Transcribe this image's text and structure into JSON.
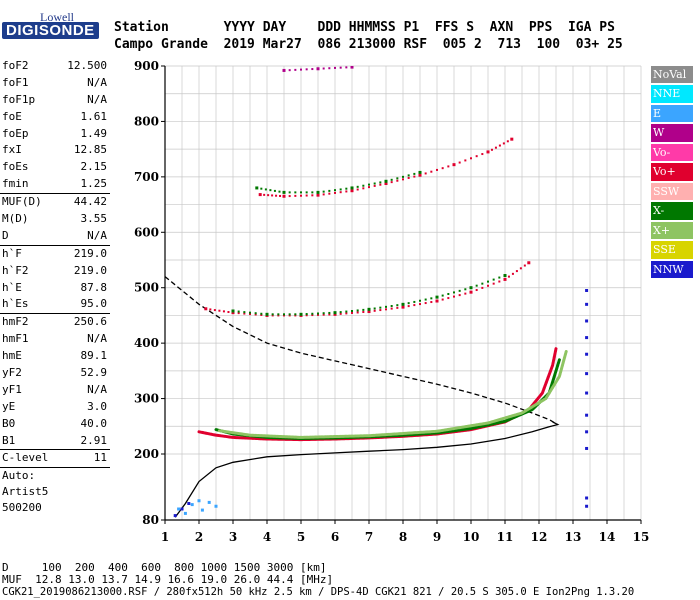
{
  "logo": {
    "top": "Lowell",
    "main": "DIGISONDE"
  },
  "header": {
    "labels": "Station       YYYY DAY    DDD HHMMSS P1  FFS S  AXN  PPS  IGA PS",
    "values": "Campo Grande  2019 Mar27  086 213000 RSF  005 2  713  100  03+ 25"
  },
  "params": [
    {
      "type": "row",
      "name": "foF2",
      "value": "12.500"
    },
    {
      "type": "row",
      "name": "foF1",
      "value": "N/A"
    },
    {
      "type": "row",
      "name": "foF1p",
      "value": "N/A"
    },
    {
      "type": "row",
      "name": "foE",
      "value": "1.61"
    },
    {
      "type": "row",
      "name": "foEp",
      "value": "1.49"
    },
    {
      "type": "row",
      "name": "fxI",
      "value": "12.85"
    },
    {
      "type": "row",
      "name": "foEs",
      "value": "2.15"
    },
    {
      "type": "row",
      "name": "fmin",
      "value": "1.25"
    },
    {
      "type": "sep"
    },
    {
      "type": "row",
      "name": "MUF(D)",
      "value": "44.42"
    },
    {
      "type": "row",
      "name": "M(D)",
      "value": "3.55"
    },
    {
      "type": "row",
      "name": "D",
      "value": "N/A"
    },
    {
      "type": "sep"
    },
    {
      "type": "row",
      "name": "h`F",
      "value": "219.0"
    },
    {
      "type": "row",
      "name": "h`F2",
      "value": "219.0"
    },
    {
      "type": "row",
      "name": "h`E",
      "value": "87.8"
    },
    {
      "type": "row",
      "name": "h`Es",
      "value": "95.0"
    },
    {
      "type": "sep"
    },
    {
      "type": "row",
      "name": "hmF2",
      "value": "250.6"
    },
    {
      "type": "row",
      "name": "hmF1",
      "value": "N/A"
    },
    {
      "type": "row",
      "name": "hmE",
      "value": "89.1"
    },
    {
      "type": "row",
      "name": "yF2",
      "value": "52.9"
    },
    {
      "type": "row",
      "name": "yF1",
      "value": "N/A"
    },
    {
      "type": "row",
      "name": "yE",
      "value": "3.0"
    },
    {
      "type": "row",
      "name": "B0",
      "value": "40.0"
    },
    {
      "type": "row",
      "name": "B1",
      "value": "2.91"
    },
    {
      "type": "sep"
    },
    {
      "type": "row",
      "name": "C-level",
      "value": "11"
    },
    {
      "type": "sep"
    },
    {
      "type": "text",
      "text": "Auto:"
    },
    {
      "type": "text",
      "text": "Artist5"
    },
    {
      "type": "text",
      "text": "500200"
    }
  ],
  "legend": [
    {
      "label": "NoVal",
      "color": "#8c8c8c"
    },
    {
      "label": "NNE",
      "color": "#00e8ff"
    },
    {
      "label": "E",
      "color": "#3ba5ff"
    },
    {
      "label": "W",
      "color": "#b0008a"
    },
    {
      "label": "Vo-",
      "color": "#ff3aa8"
    },
    {
      "label": "Vo+",
      "color": "#e0002e"
    },
    {
      "label": "SSW",
      "color": "#ffb0b0"
    },
    {
      "label": "X-",
      "color": "#007800"
    },
    {
      "label": "X+",
      "color": "#8ec462"
    },
    {
      "label": "SSE",
      "color": "#d8d400"
    },
    {
      "label": "NNW",
      "color": "#1a1acc"
    }
  ],
  "footer": {
    "line1": "D     100  200  400  600  800 1000 1500 3000 [km]",
    "line2": "MUF  12.8 13.0 13.7 14.9 16.6 19.0 26.0 44.4 [MHz]",
    "line3": "CGK21_2019086213000.RSF / 280fx512h 50 kHz 2.5 km / DPS-4D CGK21 821 / 20.5 S 305.0 E Ion2Png 1.3.20"
  },
  "chart_data": {
    "type": "scatter",
    "xlim": [
      1,
      15
    ],
    "ylim": [
      80,
      900
    ],
    "x_ticks": [
      1,
      2,
      3,
      4,
      5,
      6,
      7,
      8,
      9,
      10,
      11,
      12,
      13,
      14,
      15
    ],
    "y_ticks": [
      80,
      200,
      300,
      400,
      500,
      600,
      700,
      800,
      900
    ],
    "grid": true,
    "series": [
      {
        "name": "Vo+",
        "color": "#e0002e",
        "kind": "trace",
        "points": [
          [
            2.0,
            240
          ],
          [
            2.5,
            234
          ],
          [
            3,
            230
          ],
          [
            4,
            227
          ],
          [
            5,
            226
          ],
          [
            6,
            227
          ],
          [
            7,
            229
          ],
          [
            8,
            232
          ],
          [
            9,
            236
          ],
          [
            10,
            244
          ],
          [
            11,
            258
          ],
          [
            11.7,
            280
          ],
          [
            12.1,
            310
          ],
          [
            12.4,
            360
          ],
          [
            12.5,
            390
          ]
        ]
      },
      {
        "name": "X-",
        "color": "#007800",
        "kind": "trace",
        "points": [
          [
            2.5,
            244
          ],
          [
            3,
            236
          ],
          [
            4,
            230
          ],
          [
            5,
            228
          ],
          [
            6,
            229
          ],
          [
            7,
            231
          ],
          [
            8,
            234
          ],
          [
            9,
            238
          ],
          [
            10,
            246
          ],
          [
            11,
            259
          ],
          [
            11.8,
            280
          ],
          [
            12.3,
            310
          ],
          [
            12.6,
            370
          ]
        ]
      },
      {
        "name": "X+",
        "color": "#8ec462",
        "kind": "trace",
        "points": [
          [
            2.6,
            242
          ],
          [
            3.5,
            234
          ],
          [
            5,
            230
          ],
          [
            7,
            233
          ],
          [
            9,
            241
          ],
          [
            10.5,
            256
          ],
          [
            11.5,
            274
          ],
          [
            12.2,
            300
          ],
          [
            12.6,
            340
          ],
          [
            12.8,
            385
          ]
        ]
      },
      {
        "name": "Vo+",
        "color": "#e0002e",
        "kind": "dots",
        "points": [
          [
            2.2,
            462
          ],
          [
            3,
            455
          ],
          [
            4,
            450
          ],
          [
            5,
            450
          ],
          [
            6,
            452
          ],
          [
            7,
            457
          ],
          [
            8,
            465
          ],
          [
            9,
            476
          ],
          [
            10,
            492
          ],
          [
            11,
            515
          ],
          [
            11.7,
            545
          ]
        ]
      },
      {
        "name": "X-",
        "color": "#007800",
        "kind": "dots",
        "points": [
          [
            3,
            458
          ],
          [
            4,
            452
          ],
          [
            5,
            452
          ],
          [
            6,
            455
          ],
          [
            7,
            461
          ],
          [
            8,
            470
          ],
          [
            9,
            483
          ],
          [
            10,
            500
          ],
          [
            11,
            522
          ]
        ]
      },
      {
        "name": "Vo+",
        "color": "#e0002e",
        "kind": "dots",
        "points": [
          [
            3.8,
            668
          ],
          [
            4.5,
            665
          ],
          [
            5.5,
            667
          ],
          [
            6.5,
            675
          ],
          [
            7.5,
            688
          ],
          [
            8.5,
            703
          ],
          [
            9.5,
            722
          ],
          [
            10.5,
            745
          ],
          [
            11.2,
            768
          ]
        ]
      },
      {
        "name": "X-",
        "color": "#007800",
        "kind": "dots",
        "points": [
          [
            3.7,
            680
          ],
          [
            4.5,
            672
          ],
          [
            5.5,
            672
          ],
          [
            6.5,
            680
          ],
          [
            7.5,
            692
          ],
          [
            8.5,
            708
          ]
        ]
      },
      {
        "name": "W",
        "color": "#b0008a",
        "kind": "dots",
        "points": [
          [
            4.5,
            892
          ],
          [
            5.5,
            895
          ],
          [
            6.5,
            898
          ]
        ]
      },
      {
        "name": "E",
        "color": "#3ba5ff",
        "kind": "dots",
        "points": [
          [
            1.4,
            100
          ],
          [
            1.8,
            108
          ],
          [
            2.0,
            115
          ],
          [
            2.3,
            112
          ],
          [
            2.5,
            105
          ],
          [
            1.6,
            92
          ],
          [
            2.1,
            98
          ]
        ]
      },
      {
        "name": "NNW",
        "color": "#1a1acc",
        "kind": "dots",
        "points": [
          [
            1.3,
            88
          ],
          [
            1.5,
            100
          ],
          [
            1.7,
            110
          ],
          [
            13.4,
            495
          ],
          [
            13.4,
            470
          ],
          [
            13.4,
            440
          ],
          [
            13.4,
            410
          ],
          [
            13.4,
            380
          ],
          [
            13.4,
            345
          ],
          [
            13.4,
            310
          ],
          [
            13.4,
            270
          ],
          [
            13.4,
            240
          ],
          [
            13.4,
            210
          ],
          [
            13.4,
            120
          ],
          [
            13.4,
            105
          ]
        ]
      }
    ],
    "profiles": [
      {
        "name": "true-height-profile",
        "style": "solid",
        "color": "#000000",
        "points": [
          [
            1.3,
            85
          ],
          [
            1.6,
            110
          ],
          [
            2.0,
            150
          ],
          [
            2.5,
            175
          ],
          [
            3,
            185
          ],
          [
            4,
            195
          ],
          [
            5,
            199
          ],
          [
            6,
            202
          ],
          [
            7,
            205
          ],
          [
            8,
            208
          ],
          [
            9,
            212
          ],
          [
            10,
            218
          ],
          [
            11,
            228
          ],
          [
            11.8,
            240
          ],
          [
            12.3,
            249
          ],
          [
            12.55,
            253
          ],
          [
            12.4,
            258
          ]
        ]
      },
      {
        "name": "extrapolated-profile",
        "style": "dashed",
        "color": "#000000",
        "points": [
          [
            1,
            520
          ],
          [
            2,
            470
          ],
          [
            3,
            430
          ],
          [
            4,
            400
          ],
          [
            5,
            382
          ],
          [
            6,
            368
          ],
          [
            7,
            354
          ],
          [
            8,
            340
          ],
          [
            9,
            326
          ],
          [
            10,
            310
          ],
          [
            11,
            292
          ],
          [
            11.8,
            274
          ],
          [
            12.3,
            262
          ],
          [
            12.55,
            253
          ]
        ]
      }
    ]
  }
}
